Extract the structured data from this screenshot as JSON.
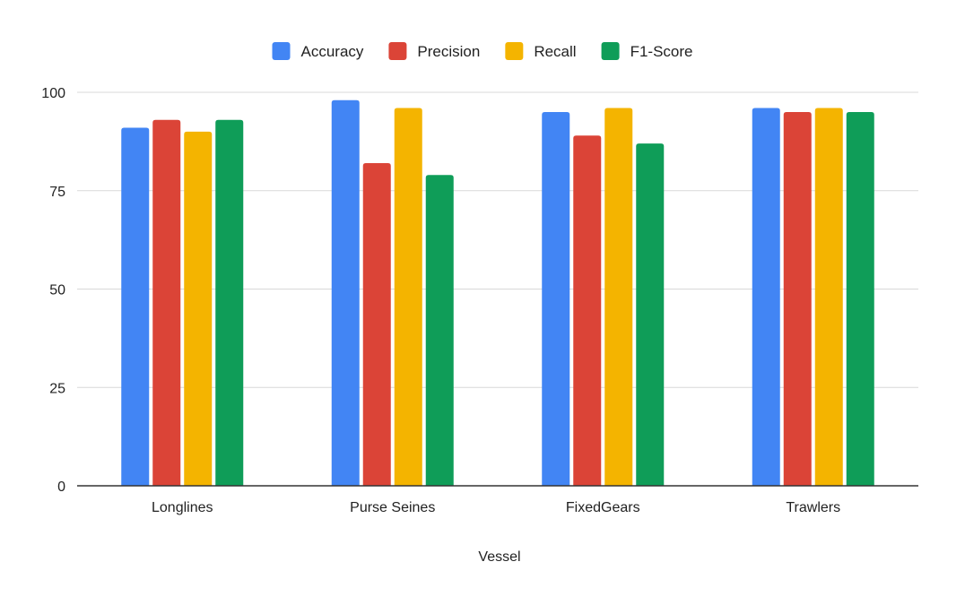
{
  "chart_data": {
    "type": "bar",
    "title": "",
    "xlabel": "Vessel",
    "ylabel": "",
    "categories": [
      "Longlines",
      "Purse Seines",
      "FixedGears",
      "Trawlers"
    ],
    "series": [
      {
        "name": "Accuracy",
        "color": "#4285f4",
        "values": [
          91,
          98,
          95,
          96
        ]
      },
      {
        "name": "Precision",
        "color": "#db4437",
        "values": [
          93,
          82,
          89,
          95
        ]
      },
      {
        "name": "Recall",
        "color": "#f4b400",
        "values": [
          90,
          96,
          96,
          96
        ]
      },
      {
        "name": "F1-Score",
        "color": "#0f9d58",
        "values": [
          93,
          79,
          87,
          95
        ]
      }
    ],
    "ylim": [
      0,
      100
    ],
    "yticks": [
      "0",
      "25",
      "50",
      "75",
      "100"
    ],
    "grid": true,
    "legend_position": "top"
  }
}
